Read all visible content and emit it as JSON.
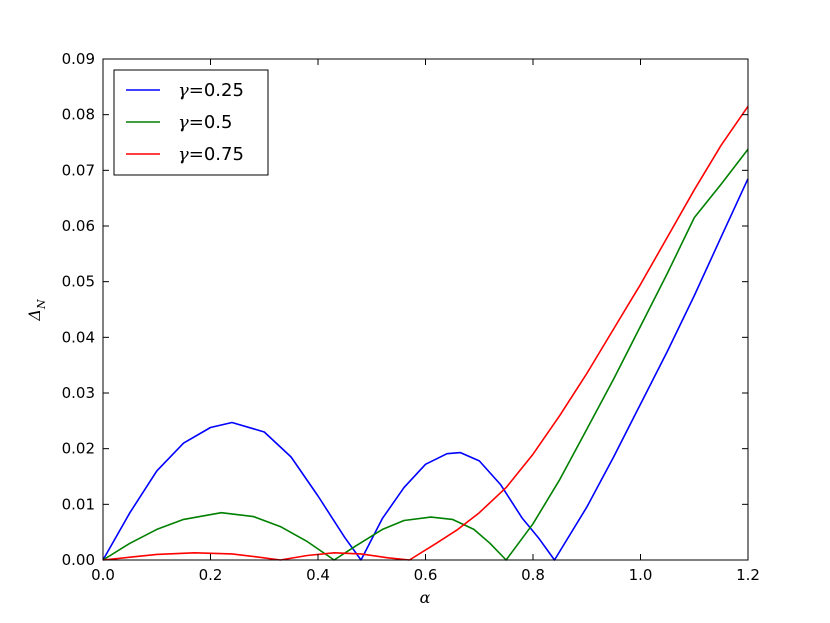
{
  "chart_data": {
    "type": "line",
    "xlabel": "α",
    "ylabel": "Δ_N",
    "xlim": [
      0.0,
      1.2
    ],
    "ylim": [
      0.0,
      0.09
    ],
    "xticks": [
      "0.0",
      "0.2",
      "0.4",
      "0.6",
      "0.8",
      "1.0",
      "1.2"
    ],
    "yticks": [
      "0.00",
      "0.01",
      "0.02",
      "0.03",
      "0.04",
      "0.05",
      "0.06",
      "0.07",
      "0.08",
      "0.09"
    ],
    "grid": false,
    "legend_position": "top-left",
    "series": [
      {
        "name": "γ=0.25",
        "color": "#0000ff",
        "x": [
          0.0,
          0.05,
          0.1,
          0.15,
          0.2,
          0.24,
          0.3,
          0.35,
          0.4,
          0.45,
          0.48,
          0.52,
          0.56,
          0.6,
          0.64,
          0.665,
          0.7,
          0.74,
          0.78,
          0.81,
          0.84,
          0.9,
          0.95,
          1.0,
          1.05,
          1.1,
          1.15,
          1.2
        ],
        "y": [
          0.0,
          0.0085,
          0.016,
          0.021,
          0.0238,
          0.0247,
          0.023,
          0.0185,
          0.0115,
          0.004,
          0.0,
          0.0075,
          0.013,
          0.0172,
          0.0191,
          0.0193,
          0.0178,
          0.0135,
          0.0075,
          0.004,
          0.0,
          0.0095,
          0.0185,
          0.028,
          0.0375,
          0.0475,
          0.058,
          0.0685
        ]
      },
      {
        "name": "γ=0.5",
        "color": "#008000",
        "x": [
          0.0,
          0.05,
          0.1,
          0.15,
          0.22,
          0.28,
          0.33,
          0.38,
          0.43,
          0.47,
          0.52,
          0.56,
          0.61,
          0.65,
          0.69,
          0.72,
          0.75,
          0.8,
          0.85,
          0.9,
          0.95,
          1.0,
          1.05,
          1.1,
          1.15,
          1.2
        ],
        "y": [
          0.0,
          0.003,
          0.0055,
          0.0073,
          0.0085,
          0.0078,
          0.006,
          0.0033,
          0.0,
          0.0025,
          0.0055,
          0.0071,
          0.0077,
          0.0073,
          0.0055,
          0.003,
          0.0,
          0.0065,
          0.0145,
          0.0235,
          0.0325,
          0.042,
          0.0515,
          0.0615,
          0.0675,
          0.0738
        ]
      },
      {
        "name": "γ=0.75",
        "color": "#ff0000",
        "x": [
          0.0,
          0.05,
          0.1,
          0.17,
          0.24,
          0.29,
          0.33,
          0.38,
          0.43,
          0.48,
          0.53,
          0.57,
          0.62,
          0.66,
          0.7,
          0.75,
          0.8,
          0.85,
          0.9,
          0.95,
          1.0,
          1.05,
          1.1,
          1.15,
          1.2
        ],
        "y": [
          0.0,
          0.0005,
          0.001,
          0.0013,
          0.0011,
          0.0005,
          0.0,
          0.0008,
          0.0013,
          0.0011,
          0.0004,
          0.0,
          0.003,
          0.0055,
          0.0085,
          0.013,
          0.019,
          0.026,
          0.0335,
          0.0415,
          0.0495,
          0.058,
          0.0665,
          0.0745,
          0.0815
        ]
      }
    ]
  }
}
